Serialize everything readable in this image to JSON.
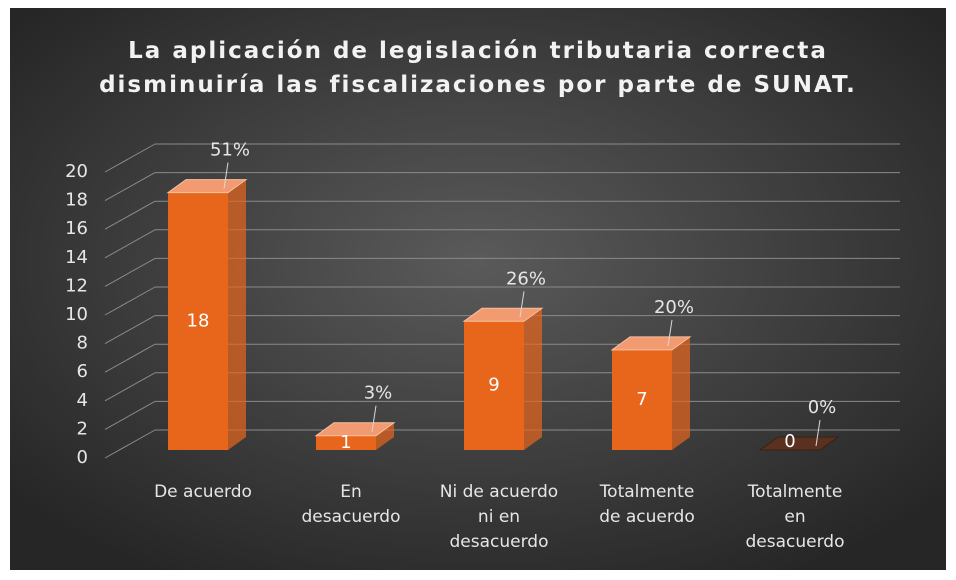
{
  "chart_data": {
    "type": "bar3d",
    "title": "La aplicación de legislación tributaria correcta\ndisminuiría las fiscalizaciones por parte de SUNAT.",
    "categories": [
      "De acuerdo",
      "En\ndesacuerdo",
      "Ni de acuerdo\nni en\ndesacuerdo",
      "Totalmente\nde acuerdo",
      "Totalmente\nen\ndesacuerdo"
    ],
    "values": [
      18,
      1,
      9,
      7,
      0
    ],
    "percentages": [
      51,
      3,
      26,
      20,
      0
    ],
    "percentage_labels": [
      "51%",
      "3%",
      "26%",
      "20%",
      "0%"
    ],
    "color": "#e8661c",
    "ylim": [
      0,
      20
    ],
    "yticks": [
      0,
      2,
      4,
      6,
      8,
      10,
      12,
      14,
      16,
      18,
      20
    ],
    "grid": true
  }
}
